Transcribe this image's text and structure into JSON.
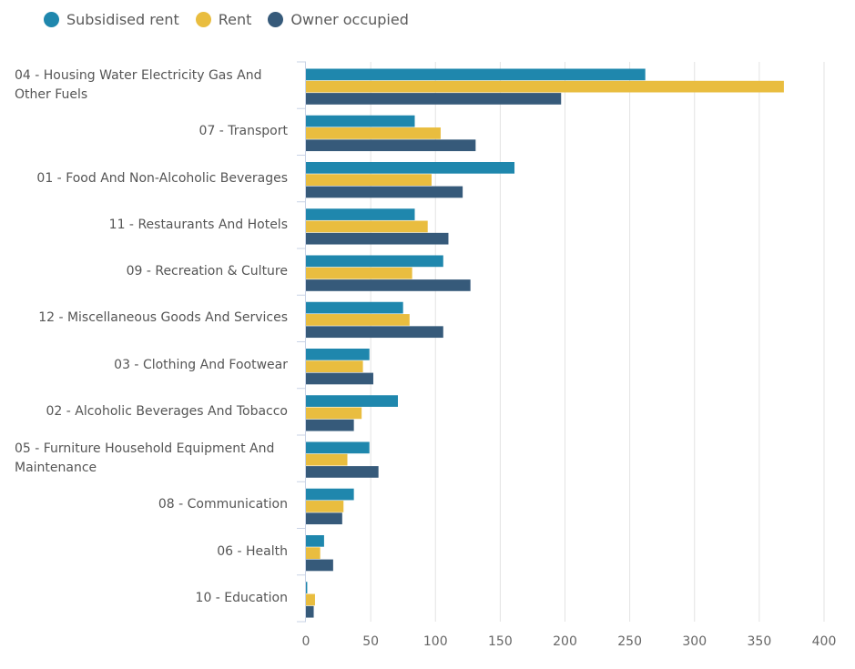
{
  "chart_data": {
    "type": "bar",
    "orientation": "horizontal",
    "categories": [
      "04 - Housing Water Electricity Gas And Other Fuels",
      "07 - Transport",
      "01 - Food And Non-Alcoholic Beverages",
      "11 - Restaurants And Hotels",
      "09 - Recreation & Culture",
      "12 - Miscellaneous Goods And Services",
      "03 - Clothing And Footwear",
      "02 - Alcoholic Beverages And Tobacco",
      "05 - Furniture Household Equipment And Maintenance",
      "08 - Communication",
      "06 - Health",
      "10 - Education"
    ],
    "series": [
      {
        "name": "Subsidised rent",
        "color": "#1f87ad",
        "values": [
          262,
          84,
          161,
          84,
          106,
          75,
          49,
          71,
          49,
          37,
          14,
          1
        ]
      },
      {
        "name": "Rent",
        "color": "#e9bd3f",
        "values": [
          369,
          104,
          97,
          94,
          82,
          80,
          44,
          43,
          32,
          29,
          11,
          7
        ]
      },
      {
        "name": "Owner occupied",
        "color": "#365a7a",
        "values": [
          197,
          131,
          121,
          110,
          127,
          106,
          52,
          37,
          56,
          28,
          21,
          6
        ]
      }
    ],
    "xlim": [
      0,
      400
    ],
    "xticks": [
      "0",
      "50",
      "100",
      "150",
      "200",
      "250",
      "300",
      "350",
      "400"
    ],
    "grid": true,
    "legend": "top-left",
    "title": "",
    "xlabel": "",
    "ylabel": ""
  }
}
